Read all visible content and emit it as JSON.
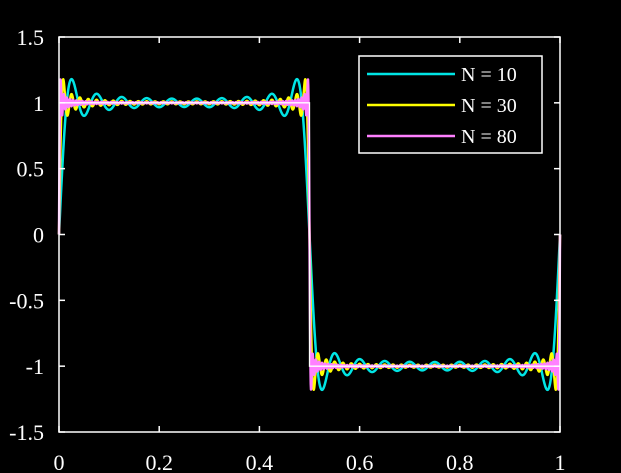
{
  "chart_data": {
    "type": "line",
    "title": "",
    "xlabel": "",
    "ylabel": "",
    "xlim": [
      0,
      1
    ],
    "ylim": [
      -1.5,
      1.5
    ],
    "grid": false,
    "legend_position": "top-right",
    "x_ticks": [
      0,
      0.2,
      0.4,
      0.6,
      0.8,
      1
    ],
    "x_tick_labels": [
      "0",
      "0.2",
      "0.4",
      "0.6",
      "0.8",
      "1"
    ],
    "y_ticks": [
      -1.5,
      -1,
      -0.5,
      0,
      0.5,
      1,
      1.5
    ],
    "y_tick_labels": [
      "-1.5",
      "-1",
      "-0.5",
      "0",
      "0.5",
      "1",
      "1.5"
    ],
    "reference": {
      "description": "square wave",
      "x": [
        0,
        0.5,
        0.5,
        1
      ],
      "y": [
        1,
        1,
        -1,
        -1
      ],
      "color": "#ffffff"
    },
    "series": [
      {
        "name": "N = 10",
        "terms": 10,
        "color": "#00e5e5"
      },
      {
        "name": "N = 30",
        "terms": 30,
        "color": "#ffff00"
      },
      {
        "name": "N = 80",
        "terms": 80,
        "color": "#ff80ff"
      }
    ],
    "colors": {
      "background": "#000000",
      "axes": "#ffffff",
      "legend_box_edge": "#ffffff"
    }
  }
}
